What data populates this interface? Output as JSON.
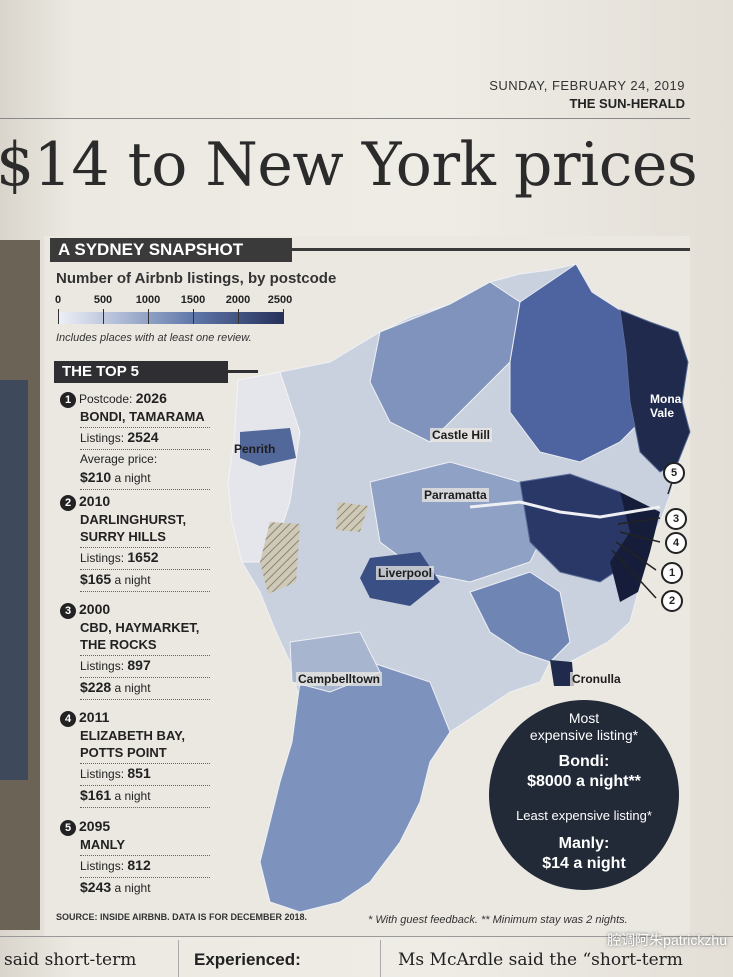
{
  "masthead": {
    "date": "SUNDAY, FEBRUARY 24, 2019",
    "paper": "THE SUN-HERALD"
  },
  "headline": "$14 to New York prices",
  "snapshot": {
    "title": "A SYDNEY SNAPSHOT",
    "legend_title": "Number of Airbnb listings, by postcode",
    "legend_ticks": [
      "0",
      "500",
      "1000",
      "1500",
      "2000",
      "2500"
    ],
    "legend_note": "Includes places with at least one review."
  },
  "top5": {
    "title": "THE TOP 5",
    "entries": [
      {
        "rank": "1",
        "postcode_label": "Postcode:",
        "postcode": "2026",
        "suburb_line1": "BONDI, TAMARAMA",
        "suburb_line2": "",
        "suburb_line3": "",
        "listings_label": "Listings:",
        "listings": "2524",
        "price_label": "Average price:",
        "price": "$210",
        "per_night": "a night"
      },
      {
        "rank": "2",
        "postcode_label": "",
        "postcode": "2010",
        "suburb_line1": "DARLINGHURST,",
        "suburb_line2": "SURRY HILLS",
        "suburb_line3": "",
        "listings_label": "Listings:",
        "listings": "1652",
        "price_label": "",
        "price": "$165",
        "per_night": "a night"
      },
      {
        "rank": "3",
        "postcode_label": "",
        "postcode": "2000",
        "suburb_line1": "CBD, HAYMARKET,",
        "suburb_line2": "THE ROCKS",
        "suburb_line3": "",
        "listings_label": "Listings:",
        "listings": "897",
        "price_label": "",
        "price": "$228",
        "per_night": "a night"
      },
      {
        "rank": "4",
        "postcode_label": "",
        "postcode": "2011",
        "suburb_line1": "ELIZABETH BAY,",
        "suburb_line2": "POTTS POINT",
        "suburb_line3": "",
        "listings_label": "Listings:",
        "listings": "851",
        "price_label": "",
        "price": "$161",
        "per_night": "a night"
      },
      {
        "rank": "5",
        "postcode_label": "",
        "postcode": "2095",
        "suburb_line1": "MANLY",
        "suburb_line2": "",
        "suburb_line3": "",
        "listings_label": "Listings:",
        "listings": "812",
        "price_label": "",
        "price": "$243",
        "per_night": "a night"
      }
    ]
  },
  "map": {
    "labels": {
      "penrith": "Penrith",
      "castle_hill": "Castle Hill",
      "parramatta": "Parramatta",
      "liverpool": "Liverpool",
      "campbelltown": "Campbelltown",
      "cronulla": "Cronulla",
      "mona_vale_1": "Mona",
      "mona_vale_2": "Vale"
    },
    "markers": [
      "1",
      "2",
      "3",
      "4",
      "5"
    ]
  },
  "price_circle": {
    "most_line1": "Most",
    "most_line2": "expensive listing*",
    "bondi_line1": "Bondi:",
    "bondi_line2": "$8000 a night**",
    "least": "Least expensive listing*",
    "manly_line1": "Manly:",
    "manly_line2": "$14 a night"
  },
  "source": "SOURCE: INSIDE AIRBNB. DATA IS FOR DECEMBER 2018.",
  "footnote": "* With guest feedback. ** Minimum stay was 2 nights.",
  "body_snippets": {
    "col1": "said short-term",
    "col2": "Experienced:",
    "col3": "Ms McArdle said the “short-term"
  },
  "watermark": "腔调阿朱patrickzhu",
  "colors": {
    "map_dark": "#1f2a4d",
    "map_mid": "#5b73a6",
    "map_light": "#c7cfde",
    "ink": "#222222"
  }
}
